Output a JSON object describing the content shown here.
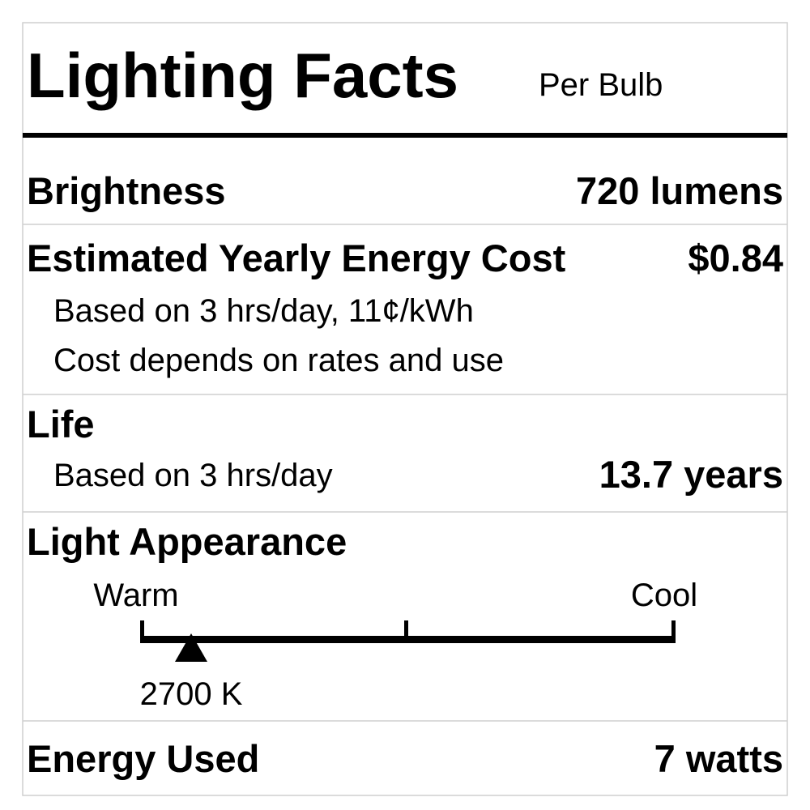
{
  "header": {
    "title": "Lighting Facts",
    "subtitle": "Per Bulb"
  },
  "brightness": {
    "label": "Brightness",
    "value": "720 lumens"
  },
  "cost": {
    "label": "Estimated Yearly Energy Cost",
    "value": "$0.84",
    "notes": [
      "Based on 3 hrs/day, 11¢/kWh",
      "Cost depends on rates and use"
    ]
  },
  "life": {
    "label": "Life",
    "note": "Based on 3 hrs/day",
    "value": "13.7 years"
  },
  "appearance": {
    "label": "Light Appearance",
    "scale_left": "Warm",
    "scale_right": "Cool",
    "marker_label": "2700 K"
  },
  "energy": {
    "label": "Energy Used",
    "value": "7 watts"
  }
}
